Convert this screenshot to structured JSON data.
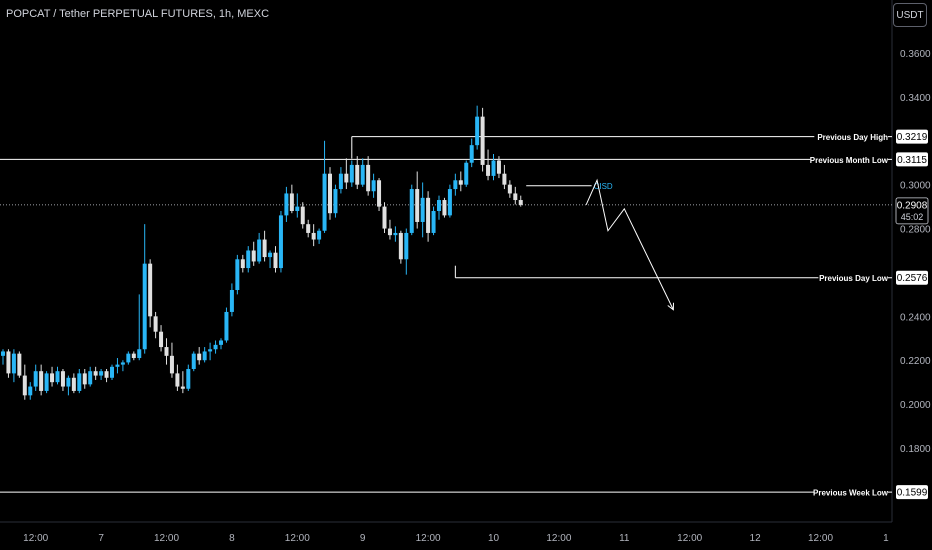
{
  "header": {
    "title": "POPCAT / Tether PERPETUAL FUTURES, 1h, MEXC",
    "currency_button": "USDT"
  },
  "colors": {
    "background": "#000000",
    "bull_candle": "#29b6f6",
    "bear_candle": "#e0e0e0",
    "level_line": "#ffffff",
    "label_bg": "#ffffff",
    "label_text": "#000000",
    "cisd_text": "#29b6f6",
    "axis_text": "#b2b5be"
  },
  "chart_data": {
    "type": "candlestick",
    "ylim": [
      0.16,
      0.37
    ],
    "y_ticks": [
      {
        "value": 0.36,
        "label": "0.3600"
      },
      {
        "value": 0.34,
        "label": "0.3400"
      },
      {
        "value": 0.3,
        "label": "0.3000"
      },
      {
        "value": 0.28,
        "label": "0.2800"
      },
      {
        "value": 0.24,
        "label": "0.2400"
      },
      {
        "value": 0.22,
        "label": "0.2200"
      },
      {
        "value": 0.2,
        "label": "0.2000"
      },
      {
        "value": 0.18,
        "label": "0.1800"
      }
    ],
    "x_ticks": [
      {
        "index": 6,
        "label": "12:00"
      },
      {
        "index": 18,
        "label": "7"
      },
      {
        "index": 30,
        "label": "12:00"
      },
      {
        "index": 42,
        "label": "8"
      },
      {
        "index": 54,
        "label": "12:00"
      },
      {
        "index": 66,
        "label": "9"
      },
      {
        "index": 78,
        "label": "12:00"
      },
      {
        "index": 90,
        "label": "10"
      },
      {
        "index": 102,
        "label": "12:00"
      },
      {
        "index": 114,
        "label": "11"
      },
      {
        "index": 126,
        "label": "12:00"
      },
      {
        "index": 138,
        "label": "12"
      },
      {
        "index": 150,
        "label": "12:00"
      },
      {
        "index": 162,
        "label": "1"
      }
    ],
    "current_price": {
      "value": 0.2908,
      "label": "0.2908",
      "countdown": "45:02"
    },
    "levels": [
      {
        "name": "Previous Day High",
        "value": 0.3219,
        "label": "0.3219",
        "start_index": 64
      },
      {
        "name": "Previous Month Low",
        "value": 0.3115,
        "label": "0.3115",
        "start_index": 0
      },
      {
        "name": "Previous Day Low",
        "value": 0.2576,
        "label": "0.2576",
        "start_index": 83
      },
      {
        "name": "Previous Week Low",
        "value": 0.1599,
        "label": "0.1599",
        "start_index": 0
      }
    ],
    "cisd": {
      "label": "CISD",
      "value": 0.2995,
      "start_index": 96,
      "end_index": 108
    },
    "projection": [
      {
        "index": 107,
        "value": 0.2908
      },
      {
        "index": 109,
        "value": 0.302
      },
      {
        "index": 111,
        "value": 0.279
      },
      {
        "index": 114,
        "value": 0.289
      },
      {
        "index": 123,
        "value": 0.243
      }
    ],
    "ohlc": [
      [
        0.222,
        0.225,
        0.218,
        0.224
      ],
      [
        0.224,
        0.225,
        0.212,
        0.214
      ],
      [
        0.214,
        0.225,
        0.21,
        0.223
      ],
      [
        0.223,
        0.224,
        0.212,
        0.213
      ],
      [
        0.213,
        0.218,
        0.202,
        0.204
      ],
      [
        0.204,
        0.21,
        0.202,
        0.208
      ],
      [
        0.208,
        0.218,
        0.206,
        0.215
      ],
      [
        0.215,
        0.218,
        0.204,
        0.206
      ],
      [
        0.206,
        0.215,
        0.205,
        0.214
      ],
      [
        0.214,
        0.217,
        0.208,
        0.21
      ],
      [
        0.21,
        0.217,
        0.209,
        0.215
      ],
      [
        0.215,
        0.216,
        0.206,
        0.208
      ],
      [
        0.208,
        0.213,
        0.204,
        0.212
      ],
      [
        0.212,
        0.214,
        0.205,
        0.206
      ],
      [
        0.206,
        0.216,
        0.205,
        0.214
      ],
      [
        0.214,
        0.216,
        0.207,
        0.209
      ],
      [
        0.209,
        0.217,
        0.208,
        0.215
      ],
      [
        0.215,
        0.217,
        0.211,
        0.213
      ],
      [
        0.213,
        0.216,
        0.211,
        0.215
      ],
      [
        0.215,
        0.216,
        0.21,
        0.212
      ],
      [
        0.212,
        0.218,
        0.211,
        0.217
      ],
      [
        0.217,
        0.221,
        0.214,
        0.218
      ],
      [
        0.218,
        0.22,
        0.215,
        0.219
      ],
      [
        0.219,
        0.224,
        0.218,
        0.223
      ],
      [
        0.223,
        0.224,
        0.22,
        0.221
      ],
      [
        0.221,
        0.25,
        0.22,
        0.225
      ],
      [
        0.225,
        0.282,
        0.223,
        0.264
      ],
      [
        0.264,
        0.266,
        0.235,
        0.24
      ],
      [
        0.24,
        0.242,
        0.23,
        0.233
      ],
      [
        0.233,
        0.236,
        0.224,
        0.226
      ],
      [
        0.226,
        0.23,
        0.218,
        0.222
      ],
      [
        0.222,
        0.228,
        0.212,
        0.214
      ],
      [
        0.214,
        0.218,
        0.206,
        0.208
      ],
      [
        0.208,
        0.215,
        0.205,
        0.207
      ],
      [
        0.207,
        0.218,
        0.206,
        0.216
      ],
      [
        0.216,
        0.224,
        0.215,
        0.223
      ],
      [
        0.223,
        0.226,
        0.218,
        0.22
      ],
      [
        0.22,
        0.226,
        0.219,
        0.224
      ],
      [
        0.224,
        0.228,
        0.22,
        0.225
      ],
      [
        0.225,
        0.229,
        0.223,
        0.227
      ],
      [
        0.227,
        0.23,
        0.225,
        0.229
      ],
      [
        0.229,
        0.244,
        0.228,
        0.242
      ],
      [
        0.242,
        0.255,
        0.24,
        0.252
      ],
      [
        0.252,
        0.268,
        0.25,
        0.266
      ],
      [
        0.266,
        0.268,
        0.26,
        0.262
      ],
      [
        0.262,
        0.272,
        0.26,
        0.27
      ],
      [
        0.27,
        0.274,
        0.263,
        0.265
      ],
      [
        0.265,
        0.278,
        0.264,
        0.275
      ],
      [
        0.275,
        0.279,
        0.265,
        0.267
      ],
      [
        0.267,
        0.27,
        0.262,
        0.269
      ],
      [
        0.269,
        0.272,
        0.26,
        0.262
      ],
      [
        0.262,
        0.288,
        0.26,
        0.286
      ],
      [
        0.286,
        0.299,
        0.283,
        0.296
      ],
      [
        0.296,
        0.3,
        0.287,
        0.288
      ],
      [
        0.288,
        0.296,
        0.285,
        0.29
      ],
      [
        0.29,
        0.292,
        0.28,
        0.282
      ],
      [
        0.282,
        0.284,
        0.276,
        0.278
      ],
      [
        0.278,
        0.282,
        0.272,
        0.275
      ],
      [
        0.275,
        0.28,
        0.273,
        0.279
      ],
      [
        0.279,
        0.32,
        0.278,
        0.305
      ],
      [
        0.305,
        0.308,
        0.284,
        0.287
      ],
      [
        0.287,
        0.3,
        0.285,
        0.298
      ],
      [
        0.298,
        0.308,
        0.296,
        0.305
      ],
      [
        0.305,
        0.312,
        0.298,
        0.301
      ],
      [
        0.301,
        0.311,
        0.299,
        0.309
      ],
      [
        0.309,
        0.313,
        0.298,
        0.3
      ],
      [
        0.3,
        0.312,
        0.299,
        0.309
      ],
      [
        0.309,
        0.313,
        0.295,
        0.297
      ],
      [
        0.297,
        0.305,
        0.294,
        0.302
      ],
      [
        0.302,
        0.303,
        0.288,
        0.29
      ],
      [
        0.29,
        0.292,
        0.278,
        0.28
      ],
      [
        0.28,
        0.284,
        0.275,
        0.277
      ],
      [
        0.277,
        0.281,
        0.274,
        0.278
      ],
      [
        0.278,
        0.279,
        0.264,
        0.266
      ],
      [
        0.266,
        0.28,
        0.259,
        0.278
      ],
      [
        0.278,
        0.3,
        0.277,
        0.298
      ],
      [
        0.298,
        0.306,
        0.28,
        0.283
      ],
      [
        0.283,
        0.301,
        0.276,
        0.294
      ],
      [
        0.294,
        0.297,
        0.274,
        0.278
      ],
      [
        0.278,
        0.29,
        0.277,
        0.288
      ],
      [
        0.288,
        0.295,
        0.284,
        0.293
      ],
      [
        0.293,
        0.294,
        0.285,
        0.286
      ],
      [
        0.286,
        0.3,
        0.285,
        0.298
      ],
      [
        0.298,
        0.305,
        0.295,
        0.302
      ],
      [
        0.302,
        0.306,
        0.297,
        0.3
      ],
      [
        0.3,
        0.311,
        0.299,
        0.31
      ],
      [
        0.31,
        0.321,
        0.308,
        0.318
      ],
      [
        0.318,
        0.336,
        0.316,
        0.331
      ],
      [
        0.331,
        0.335,
        0.306,
        0.309
      ],
      [
        0.309,
        0.316,
        0.302,
        0.304
      ],
      [
        0.304,
        0.314,
        0.302,
        0.311
      ],
      [
        0.311,
        0.313,
        0.303,
        0.305
      ],
      [
        0.305,
        0.309,
        0.298,
        0.3
      ],
      [
        0.3,
        0.302,
        0.294,
        0.296
      ],
      [
        0.296,
        0.299,
        0.291,
        0.293
      ],
      [
        0.293,
        0.295,
        0.29,
        0.2908
      ]
    ]
  }
}
